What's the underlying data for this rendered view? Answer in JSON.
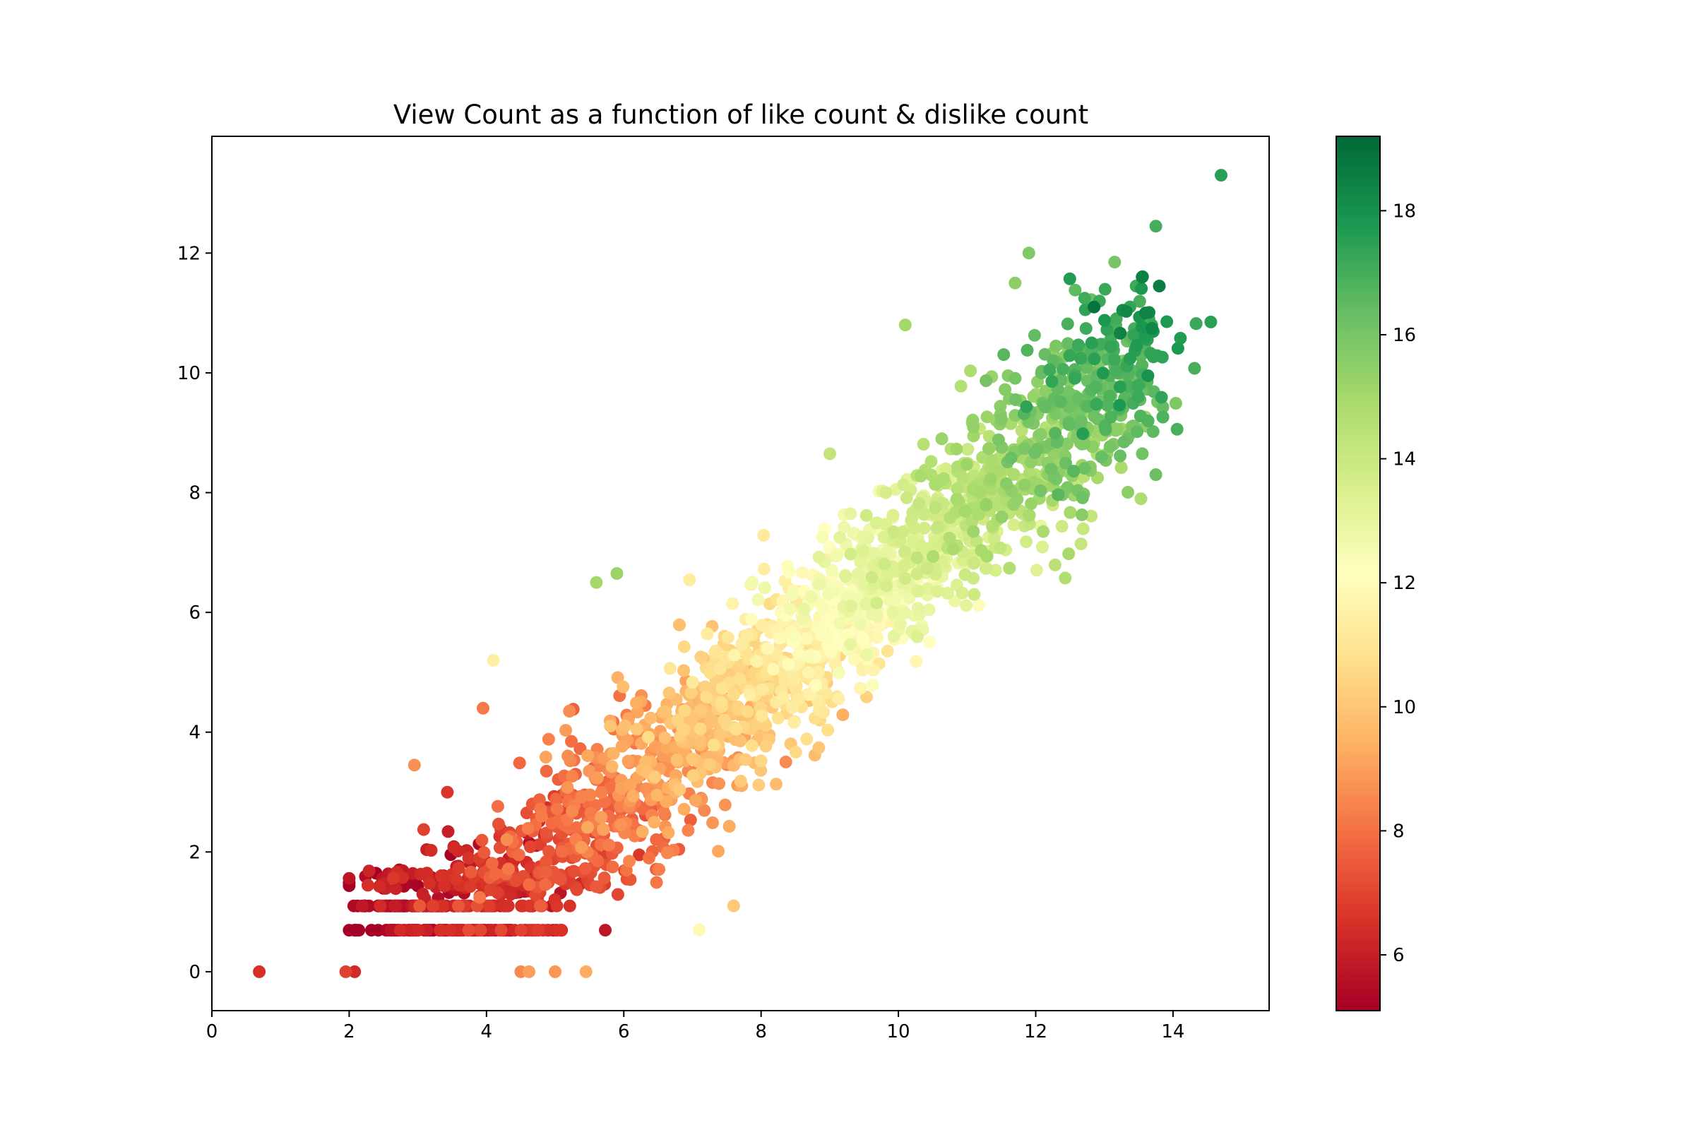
{
  "chart_data": {
    "type": "scatter",
    "title": "View Count as a function of like count  & dislike count",
    "xlabel": "",
    "ylabel": "",
    "xlim": [
      0,
      15.4
    ],
    "ylim": [
      -0.65,
      13.95
    ],
    "x_ticks": [
      0,
      2,
      4,
      6,
      8,
      10,
      12,
      14
    ],
    "y_ticks": [
      0,
      2,
      4,
      6,
      8,
      10,
      12
    ],
    "grid": false,
    "legend": "none",
    "colorbar": {
      "label": "",
      "colormap": "RdYlGn",
      "range": [
        5.1,
        19.2
      ],
      "ticks": [
        6,
        8,
        10,
        12,
        14,
        16,
        18
      ]
    },
    "marker_color_scale": [
      "#a50026",
      "#d73027",
      "#f46d43",
      "#fdae61",
      "#fee08b",
      "#ffffbf",
      "#d9ef8b",
      "#a6d96a",
      "#66bd63",
      "#1a9850",
      "#006837"
    ],
    "point_count_shown": 2600,
    "sample_points": [
      {
        "x": 0.69,
        "y": 0.0,
        "c": 6.5
      },
      {
        "x": 1.95,
        "y": 0.0,
        "c": 6.9
      },
      {
        "x": 2.08,
        "y": 0.0,
        "c": 6.3
      },
      {
        "x": 4.5,
        "y": 0.0,
        "c": 8.5
      },
      {
        "x": 4.62,
        "y": 0.0,
        "c": 9.0
      },
      {
        "x": 5.0,
        "y": 0.0,
        "c": 8.8
      },
      {
        "x": 5.45,
        "y": 0.0,
        "c": 9.3
      },
      {
        "x": 2.95,
        "y": 3.45,
        "c": 8.7
      },
      {
        "x": 3.95,
        "y": 4.4,
        "c": 8.2
      },
      {
        "x": 4.1,
        "y": 5.2,
        "c": 11.4
      },
      {
        "x": 5.6,
        "y": 6.5,
        "c": 15.0
      },
      {
        "x": 5.9,
        "y": 6.65,
        "c": 15.2
      },
      {
        "x": 7.1,
        "y": 0.7,
        "c": 11.8
      },
      {
        "x": 7.6,
        "y": 1.1,
        "c": 10.1
      },
      {
        "x": 10.1,
        "y": 10.8,
        "c": 15.0
      },
      {
        "x": 11.7,
        "y": 11.5,
        "c": 15.5
      },
      {
        "x": 11.9,
        "y": 12.0,
        "c": 15.8
      },
      {
        "x": 12.85,
        "y": 11.1,
        "c": 18.9
      },
      {
        "x": 13.15,
        "y": 11.85,
        "c": 16.0
      },
      {
        "x": 13.55,
        "y": 11.6,
        "c": 18.5
      },
      {
        "x": 13.6,
        "y": 11.0,
        "c": 18.4
      },
      {
        "x": 13.75,
        "y": 12.45,
        "c": 17.0
      },
      {
        "x": 13.8,
        "y": 11.45,
        "c": 18.6
      },
      {
        "x": 14.55,
        "y": 10.85,
        "c": 17.5
      },
      {
        "x": 14.7,
        "y": 13.3,
        "c": 17.5
      },
      {
        "x": 13.75,
        "y": 8.3,
        "c": 16.3
      }
    ]
  }
}
